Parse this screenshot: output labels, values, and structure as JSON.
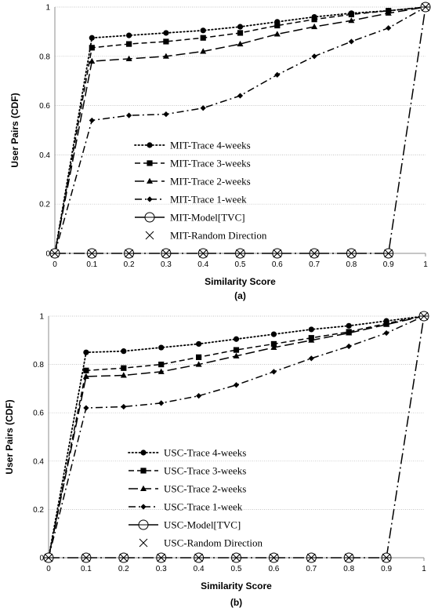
{
  "chart_data": [
    {
      "type": "line",
      "caption": "(a)",
      "xlabel": "Similarity Score",
      "ylabel": "User Pairs (CDF)",
      "xlim": [
        0,
        1
      ],
      "ylim": [
        0,
        1
      ],
      "x_ticks": [
        "0",
        "0.1",
        "0.2",
        "0.3",
        "0.4",
        "0.5",
        "0.6",
        "0.7",
        "0.8",
        "0.9",
        "1"
      ],
      "y_ticks": [
        "0",
        "0.2",
        "0.4",
        "0.6",
        "0.8",
        "1"
      ],
      "grid": "horizontal",
      "legend_position": "center",
      "x": [
        0,
        0.1,
        0.2,
        0.3,
        0.4,
        0.5,
        0.6,
        0.7,
        0.8,
        0.9,
        1
      ],
      "series": [
        {
          "name": "MIT-Trace 4-weeks",
          "line": "dotted",
          "marker": "circle",
          "values": [
            0,
            0.875,
            0.885,
            0.895,
            0.905,
            0.92,
            0.94,
            0.96,
            0.975,
            0.985,
            1
          ]
        },
        {
          "name": "MIT-Trace 3-weeks",
          "line": "dashed",
          "marker": "square",
          "values": [
            0,
            0.835,
            0.85,
            0.86,
            0.875,
            0.895,
            0.925,
            0.95,
            0.97,
            0.985,
            1
          ]
        },
        {
          "name": "MIT-Trace 2-weeks",
          "line": "longdash",
          "marker": "triangle",
          "values": [
            0,
            0.78,
            0.79,
            0.8,
            0.82,
            0.85,
            0.89,
            0.92,
            0.945,
            0.975,
            1
          ]
        },
        {
          "name": "MIT-Trace 1-week",
          "line": "dashdot",
          "marker": "diamond",
          "values": [
            0,
            0.54,
            0.56,
            0.565,
            0.59,
            0.64,
            0.725,
            0.8,
            0.86,
            0.915,
            1
          ]
        },
        {
          "name": "MIT-Model[TVC]",
          "line": "longdashdot",
          "marker": "circle-open",
          "values": [
            0,
            0,
            0,
            0,
            0,
            0,
            0,
            0,
            0,
            0,
            1
          ]
        },
        {
          "name": "MIT-Random Direction",
          "line": "none",
          "marker": "x",
          "values": [
            0,
            0,
            0,
            0,
            0,
            0,
            0,
            0,
            0,
            0,
            1
          ]
        }
      ]
    },
    {
      "type": "line",
      "caption": "(b)",
      "xlabel": "Similarity Score",
      "ylabel": "User Pairs (CDF)",
      "xlim": [
        0,
        1
      ],
      "ylim": [
        0,
        1
      ],
      "x_ticks": [
        "0",
        "0.1",
        "0.2",
        "0.3",
        "0.4",
        "0.5",
        "0.6",
        "0.7",
        "0.8",
        "0.9",
        "1"
      ],
      "y_ticks": [
        "0",
        "0.2",
        "0.4",
        "0.6",
        "0.8",
        "1"
      ],
      "grid": "horizontal",
      "legend_position": "center",
      "x": [
        0,
        0.1,
        0.2,
        0.3,
        0.4,
        0.5,
        0.6,
        0.7,
        0.8,
        0.9,
        1
      ],
      "series": [
        {
          "name": "USC-Trace 4-weeks",
          "line": "dotted",
          "marker": "circle",
          "values": [
            0,
            0.85,
            0.855,
            0.87,
            0.885,
            0.905,
            0.925,
            0.945,
            0.96,
            0.98,
            1
          ]
        },
        {
          "name": "USC-Trace 3-weeks",
          "line": "dashed",
          "marker": "square",
          "values": [
            0,
            0.775,
            0.785,
            0.8,
            0.83,
            0.86,
            0.885,
            0.91,
            0.935,
            0.97,
            1
          ]
        },
        {
          "name": "USC-Trace 2-weeks",
          "line": "longdash",
          "marker": "triangle",
          "values": [
            0,
            0.75,
            0.755,
            0.77,
            0.8,
            0.835,
            0.87,
            0.9,
            0.93,
            0.965,
            1
          ]
        },
        {
          "name": "USC-Trace 1-week",
          "line": "dashdot",
          "marker": "diamond",
          "values": [
            0,
            0.62,
            0.625,
            0.64,
            0.67,
            0.715,
            0.77,
            0.825,
            0.875,
            0.93,
            1
          ]
        },
        {
          "name": "USC-Model[TVC]",
          "line": "longdashdot",
          "marker": "circle-open",
          "values": [
            0,
            0,
            0,
            0,
            0,
            0,
            0,
            0,
            0,
            0,
            1
          ]
        },
        {
          "name": "USC-Random Direction",
          "line": "none",
          "marker": "x",
          "values": [
            0,
            0,
            0,
            0,
            0,
            0,
            0,
            0,
            0,
            0,
            1
          ]
        }
      ]
    }
  ]
}
